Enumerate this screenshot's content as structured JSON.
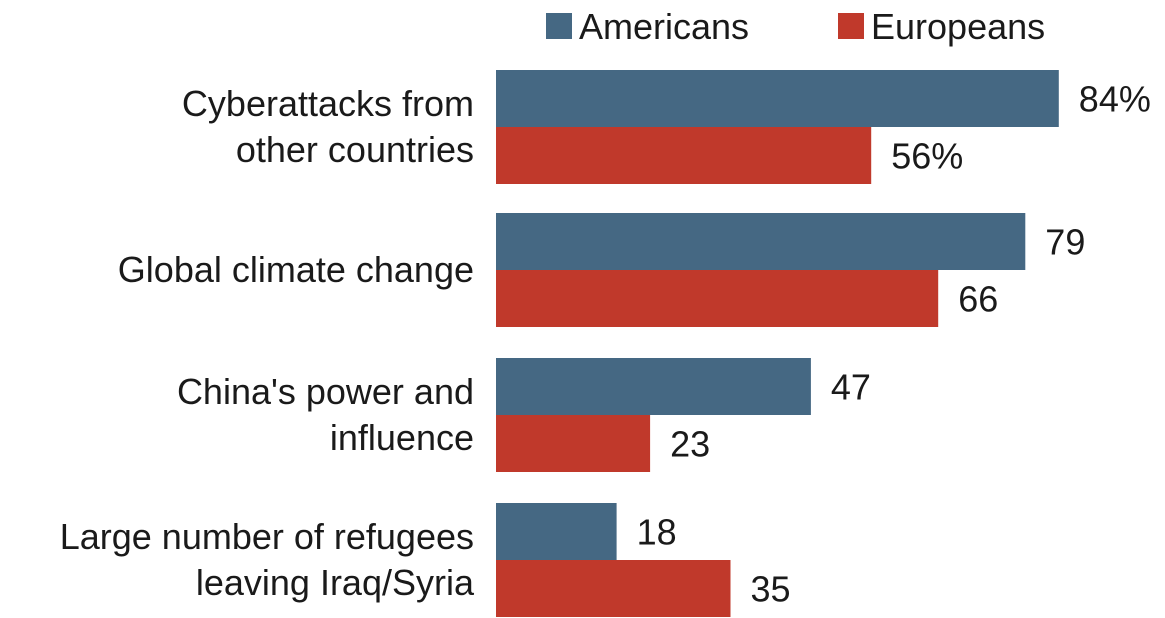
{
  "chart_data": {
    "type": "bar",
    "orientation": "horizontal",
    "title": "",
    "xlabel": "",
    "ylabel": "",
    "categories": [
      [
        "Cyberattacks from",
        "other countries"
      ],
      [
        "Global climate change"
      ],
      [
        "China's power and",
        "influence"
      ],
      [
        "Large number of refugees",
        "leaving Iraq/Syria"
      ]
    ],
    "series": [
      {
        "name": "Americans",
        "color": "#456883",
        "values": [
          84,
          79,
          47,
          18
        ],
        "labels": [
          "84%",
          "79",
          "47",
          "18"
        ]
      },
      {
        "name": "Europeans",
        "color": "#c0392b",
        "values": [
          56,
          66,
          23,
          35
        ],
        "labels": [
          "56%",
          "66",
          "23",
          "35"
        ]
      }
    ],
    "xlim": [
      0,
      84
    ],
    "grid": false,
    "legend_position": "top"
  }
}
